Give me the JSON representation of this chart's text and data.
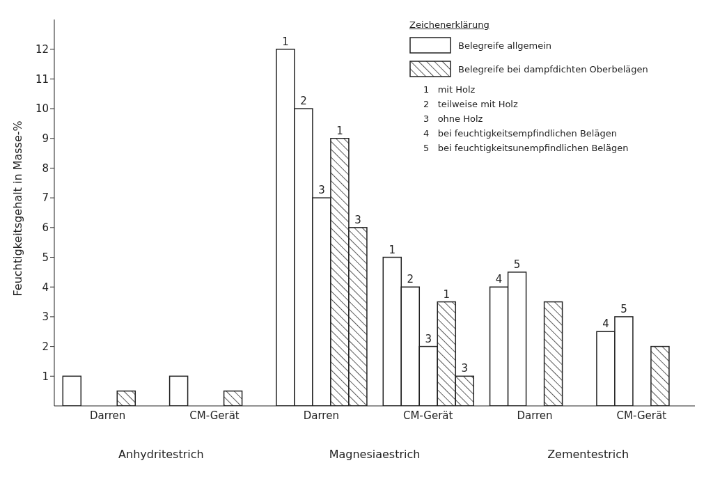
{
  "chart_data": {
    "type": "bar",
    "categories": [
      "Darren",
      "CM-Gerät",
      "Darren",
      "CM-Gerät",
      "Darren",
      "CM-Gerät"
    ],
    "ylabel": "Feuchtigkeitsgehalt in Masse-%",
    "legend_title": "Zeichenerklärung",
    "ylim": [
      0,
      13
    ],
    "yticks": [
      1,
      2,
      3,
      4,
      5,
      6,
      7,
      8,
      9,
      10,
      11,
      12
    ],
    "legend": "top right",
    "series": [
      {
        "name": "Belegreife allgemein",
        "color": "#ffffff",
        "values": [
          1,
          1,
          12,
          5,
          4,
          2.5
        ]
      },
      {
        "color": "#ffffff",
        "values": [
          null,
          null,
          10,
          4,
          4.5,
          3
        ]
      },
      {
        "color": "#ffffff",
        "values": [
          null,
          null,
          7,
          2,
          null,
          null
        ]
      },
      {
        "name": "Belegreife bei dampfdichten Oberbelägen",
        "color": "#222222",
        "values": [
          0.5,
          0.5,
          9,
          3.5,
          3.5,
          2
        ]
      },
      {
        "color": "#222222",
        "values": [
          null,
          null,
          6,
          1,
          null,
          null
        ]
      }
    ],
    "annotations": [
      "Anhydritestrich",
      "Magnesiaestrich",
      "Zementestrich",
      "1   mit Holz",
      "2   teilweise mit Holz",
      "3   ohne Holz",
      "4   bei feuchtigkeitsempfindlichen Belägen",
      "5   bei feuchtigkeitsunempfindlichen Belägen",
      "1",
      "2",
      "3",
      "1",
      "3",
      "1",
      "2",
      "3",
      "1",
      "3",
      "4",
      "5",
      "4",
      "5"
    ]
  }
}
